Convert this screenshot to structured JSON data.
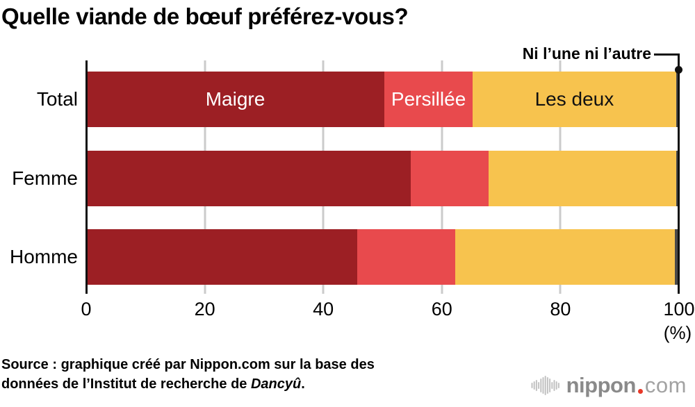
{
  "title": "Quelle viande de bœuf préférez-vous?",
  "annotation": {
    "label": "Ni l’une ni l’autre"
  },
  "chart_data": {
    "type": "bar",
    "orientation": "horizontal",
    "stacked": true,
    "title": "Quelle viande de bœuf préférez-vous?",
    "categories": [
      "Total",
      "Femme",
      "Homme"
    ],
    "series": [
      {
        "name": "Maigre",
        "color": "#9c1f24",
        "label_color": "#ffffff",
        "values": [
          50.3,
          54.7,
          45.7
        ]
      },
      {
        "name": "Persillée",
        "color": "#e84a4d",
        "label_color": "#ffffff",
        "values": [
          14.9,
          13.2,
          16.6
        ]
      },
      {
        "name": "Les deux",
        "color": "#f7c34e",
        "label_color": "#111111",
        "values": [
          34.3,
          31.6,
          37.0
        ]
      },
      {
        "name": "Ni l’une ni l’autre",
        "color": "#4a4a4a",
        "label_color": "#ffffff",
        "values": [
          0.5,
          0.5,
          0.7
        ]
      }
    ],
    "label_row": 0,
    "labeled_series_count": 3,
    "x_ticks": [
      0,
      20,
      40,
      60,
      80,
      100
    ],
    "x_tick_labels": [
      "0",
      "20",
      "40",
      "60",
      "80",
      "100"
    ],
    "x_unit": "(%)",
    "xlim": [
      0,
      100
    ],
    "grid": true,
    "gridline_color": "#cbcbcb",
    "axis_color": "#111111",
    "annotation": {
      "label": "Ni l’une ni l’autre",
      "points_to": "last segment of Total bar at 100%"
    }
  },
  "source": {
    "line1": "Source : graphique créé par Nippon.com sur la base des",
    "line2_prefix": "données de l’Institut de recherche de ",
    "line2_italic": "Dancyû",
    "line2_suffix": "."
  },
  "logo": {
    "name": "nippon",
    "tld": "com",
    "dot_color": "#e83828",
    "icon": "soundwave-bars-icon",
    "icon_color": "#c2c2c2",
    "name_color": "#8a8a8a",
    "tld_color": "#a2a2a2"
  }
}
